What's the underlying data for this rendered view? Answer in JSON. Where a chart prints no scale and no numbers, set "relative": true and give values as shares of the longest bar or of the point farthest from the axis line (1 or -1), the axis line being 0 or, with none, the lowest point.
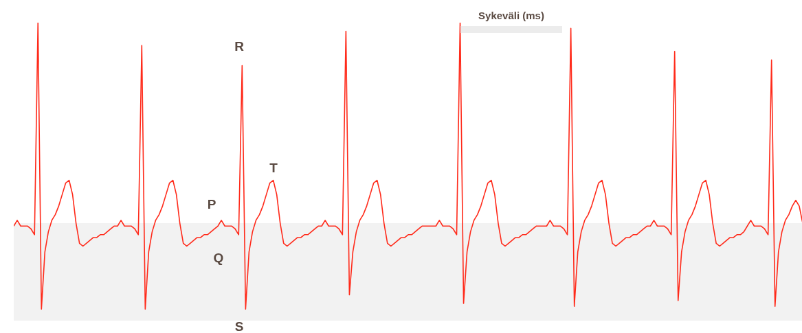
{
  "chart_data": {
    "type": "line",
    "relative": true,
    "categories": [
      null,
      null,
      null,
      null,
      null,
      null,
      null,
      null,
      null,
      null,
      null,
      null,
      null,
      null,
      null,
      null,
      null,
      null,
      null,
      null,
      null,
      null,
      null,
      null,
      null,
      null,
      null,
      null,
      null,
      null,
      null,
      null,
      null,
      null,
      null,
      null,
      null,
      null,
      null,
      null,
      null,
      null,
      null,
      null,
      null,
      null,
      null,
      null,
      null,
      null,
      null,
      null,
      null,
      null,
      null,
      null,
      null,
      null,
      null,
      null,
      null,
      null,
      null,
      null,
      null,
      null,
      null,
      null,
      null,
      null,
      null,
      null,
      null,
      null,
      null,
      null,
      null,
      null,
      null,
      null,
      null,
      null,
      null,
      null,
      null,
      null,
      null,
      null,
      null,
      null,
      null,
      null,
      null,
      null,
      null,
      null,
      null,
      null,
      null,
      null,
      null,
      null,
      null,
      null,
      null,
      null,
      null,
      null,
      null,
      null,
      null,
      null,
      null,
      null,
      null,
      null,
      null,
      null,
      null,
      null,
      null,
      null,
      null,
      null,
      null,
      null,
      null,
      null,
      null,
      null,
      null,
      null,
      null,
      null,
      null,
      null,
      null,
      null,
      null,
      null,
      null,
      null,
      null,
      null,
      null,
      null,
      null,
      null,
      null,
      null,
      null,
      null,
      null,
      null,
      null,
      null,
      null,
      null,
      null,
      null,
      null,
      null,
      null,
      null,
      null,
      null,
      null,
      null,
      null,
      null,
      null,
      null,
      null,
      null,
      null,
      null,
      null,
      null,
      null,
      null,
      null,
      null,
      null,
      null,
      null,
      null,
      null,
      null,
      null,
      null,
      null,
      null,
      null,
      null,
      null,
      null,
      null,
      null,
      null,
      null,
      null,
      null,
      null,
      null,
      null,
      null,
      null,
      null,
      null,
      null,
      null,
      null,
      null,
      null,
      null,
      null,
      null,
      null,
      null,
      null,
      null,
      null,
      null,
      null,
      null,
      null,
      null,
      null,
      null
    ],
    "series": [
      {
        "color": "#ff2a1a",
        "values": [
          0.29,
          0.31,
          0.29,
          0.29,
          0.29,
          0.28,
          0.26,
          1.0,
          0,
          0.2,
          0.27,
          0.31,
          0.33,
          0.36,
          0.4,
          0.44,
          0.45,
          0.4,
          0.3,
          0.23,
          0.22,
          0.23,
          0.24,
          0.25,
          0.25,
          0.26,
          0.26,
          0.27,
          0.28,
          0.29,
          0.29,
          0.31,
          0.29,
          0.29,
          0.29,
          0.28,
          0.26,
          0.92,
          0,
          0.2,
          0.27,
          0.31,
          0.33,
          0.36,
          0.4,
          0.44,
          0.45,
          0.4,
          0.3,
          0.23,
          0.22,
          0.23,
          0.24,
          0.25,
          0.25,
          0.26,
          0.26,
          0.27,
          0.28,
          0.29,
          0.31,
          0.29,
          0.29,
          0.29,
          0.28,
          0.26,
          0.85,
          0,
          0.2,
          0.27,
          0.31,
          0.33,
          0.36,
          0.4,
          0.44,
          0.45,
          0.4,
          0.3,
          0.23,
          0.22,
          0.23,
          0.24,
          0.25,
          0.25,
          0.26,
          0.26,
          0.27,
          0.28,
          0.29,
          0.29,
          0.31,
          0.29,
          0.29,
          0.29,
          0.28,
          0.26,
          0.97,
          0.05,
          0.2,
          0.27,
          0.31,
          0.33,
          0.36,
          0.4,
          0.44,
          0.45,
          0.4,
          0.3,
          0.23,
          0.22,
          0.23,
          0.24,
          0.25,
          0.25,
          0.26,
          0.26,
          0.27,
          0.28,
          0.29,
          0.29,
          0.29,
          0.29,
          0.29,
          0.31,
          0.29,
          0.29,
          0.29,
          0.28,
          0.26,
          1.0,
          0.02,
          0.2,
          0.27,
          0.31,
          0.33,
          0.36,
          0.4,
          0.44,
          0.45,
          0.4,
          0.3,
          0.23,
          0.22,
          0.23,
          0.24,
          0.25,
          0.25,
          0.26,
          0.26,
          0.27,
          0.28,
          0.29,
          0.29,
          0.29,
          0.29,
          0.31,
          0.29,
          0.29,
          0.29,
          0.28,
          0.26,
          0.98,
          0.01,
          0.2,
          0.27,
          0.31,
          0.33,
          0.36,
          0.4,
          0.44,
          0.45,
          0.4,
          0.3,
          0.23,
          0.22,
          0.23,
          0.24,
          0.25,
          0.25,
          0.26,
          0.26,
          0.27,
          0.28,
          0.29,
          0.29,
          0.31,
          0.29,
          0.29,
          0.29,
          0.28,
          0.26,
          0.9,
          0.03,
          0.2,
          0.27,
          0.31,
          0.33,
          0.36,
          0.4,
          0.44,
          0.45,
          0.4,
          0.3,
          0.23,
          0.22,
          0.23,
          0.24,
          0.25,
          0.25,
          0.26,
          0.26,
          0.27,
          0.29,
          0.31,
          0.29,
          0.29,
          0.29,
          0.28,
          0.26,
          0.87,
          0.01,
          0.2,
          0.27,
          0.31,
          0.33,
          0.36,
          0.38,
          0.36,
          0.3
        ]
      }
    ],
    "bands": [
      {
        "axis": "y",
        "from": -0.04,
        "to": 0.3,
        "color": "#f2f2f2"
      }
    ],
    "annotations": [
      "P",
      "Q",
      "R",
      "S",
      "T",
      "Sykeväli (ms)"
    ]
  }
}
